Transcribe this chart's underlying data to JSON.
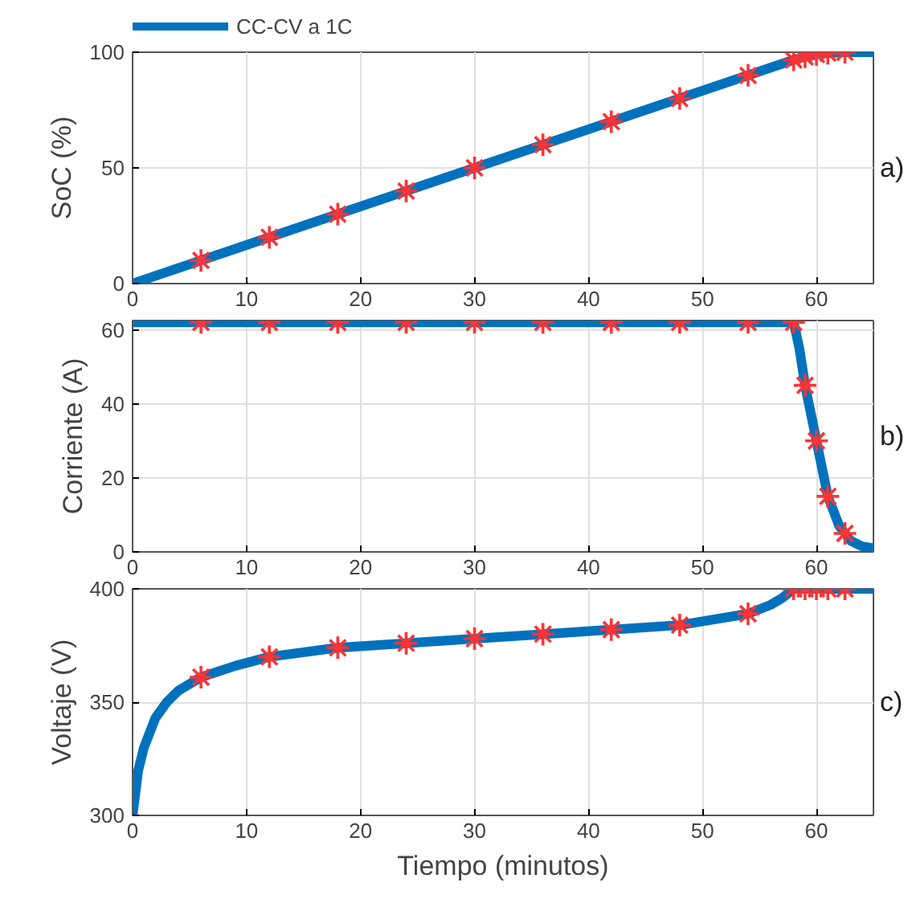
{
  "chart_data": [
    {
      "type": "line",
      "ylabel": "SoC (%)",
      "annotations": [
        "a)"
      ],
      "xlim": [
        0,
        65
      ],
      "xticks": [
        0,
        10,
        20,
        30,
        40,
        50,
        60
      ],
      "ylim": [
        0,
        100
      ],
      "yticks": [
        0,
        50,
        100
      ],
      "grid": true,
      "legend": "top left",
      "line_style": "solid",
      "series": [
        {
          "name": "CC-CV a 1C",
          "color": "#0072bd",
          "marker": "none",
          "x": [
            0,
            58,
            59,
            60,
            61,
            62,
            63,
            65
          ],
          "values": [
            0,
            96.7,
            98,
            99,
            99.6,
            99.9,
            100,
            100
          ]
        },
        {
          "type": "scatter",
          "color": "#ff3333",
          "marker": "cross",
          "x": [
            6,
            12,
            18,
            24,
            30,
            36,
            42,
            48,
            54,
            58,
            59,
            60,
            61,
            62.5
          ],
          "values": [
            10,
            20,
            30,
            40,
            50,
            60,
            70,
            80,
            90,
            96.7,
            98,
            99,
            99.6,
            100
          ]
        }
      ]
    },
    {
      "type": "line",
      "ylabel": "Corriente (A)",
      "annotations": [
        "b)"
      ],
      "xlim": [
        0,
        65
      ],
      "xticks": [
        0,
        10,
        20,
        30,
        40,
        50,
        60
      ],
      "ylim": [
        0,
        62.5
      ],
      "yticks": [
        0,
        20,
        40,
        60
      ],
      "grid": true,
      "line_style": "solid",
      "series": [
        {
          "color": "#0072bd",
          "marker": "none",
          "x": [
            0,
            58,
            58.5,
            59,
            60,
            61,
            62,
            62.5,
            63,
            64,
            65
          ],
          "values": [
            62,
            62,
            55,
            45,
            30,
            15,
            7,
            5,
            3,
            1.5,
            1
          ]
        },
        {
          "type": "scatter",
          "color": "#ff3333",
          "marker": "cross",
          "x": [
            6,
            12,
            18,
            24,
            30,
            36,
            42,
            48,
            54,
            58,
            59,
            60,
            61,
            62.5
          ],
          "values": [
            62,
            62,
            62,
            62,
            62,
            62,
            62,
            62,
            62,
            62,
            45,
            30,
            15,
            5
          ]
        }
      ]
    },
    {
      "type": "line",
      "xlabel": "Tiempo (minutos)",
      "ylabel": "Voltaje (V)",
      "annotations": [
        "c)"
      ],
      "xlim": [
        0,
        65
      ],
      "xticks": [
        0,
        10,
        20,
        30,
        40,
        50,
        60
      ],
      "ylim": [
        300,
        400
      ],
      "yticks": [
        300,
        350,
        400
      ],
      "grid": true,
      "line_style": "solid",
      "series": [
        {
          "color": "#0072bd",
          "marker": "none",
          "x": [
            0,
            0.5,
            1,
            2,
            3,
            4,
            6,
            9,
            12,
            18,
            24,
            30,
            36,
            42,
            48,
            54,
            56,
            57,
            58,
            65
          ],
          "values": [
            300,
            320,
            330,
            343,
            350,
            355,
            361,
            366,
            370,
            374,
            376,
            378,
            380,
            382,
            384,
            389,
            393,
            396,
            400,
            400
          ]
        },
        {
          "type": "scatter",
          "color": "#ff3333",
          "marker": "cross",
          "x": [
            6,
            12,
            18,
            24,
            30,
            36,
            42,
            48,
            54,
            58,
            59,
            60,
            61,
            62.5
          ],
          "values": [
            361,
            370,
            374,
            376,
            378,
            380,
            382,
            384,
            389,
            400,
            400,
            400,
            400,
            400
          ]
        }
      ]
    }
  ]
}
